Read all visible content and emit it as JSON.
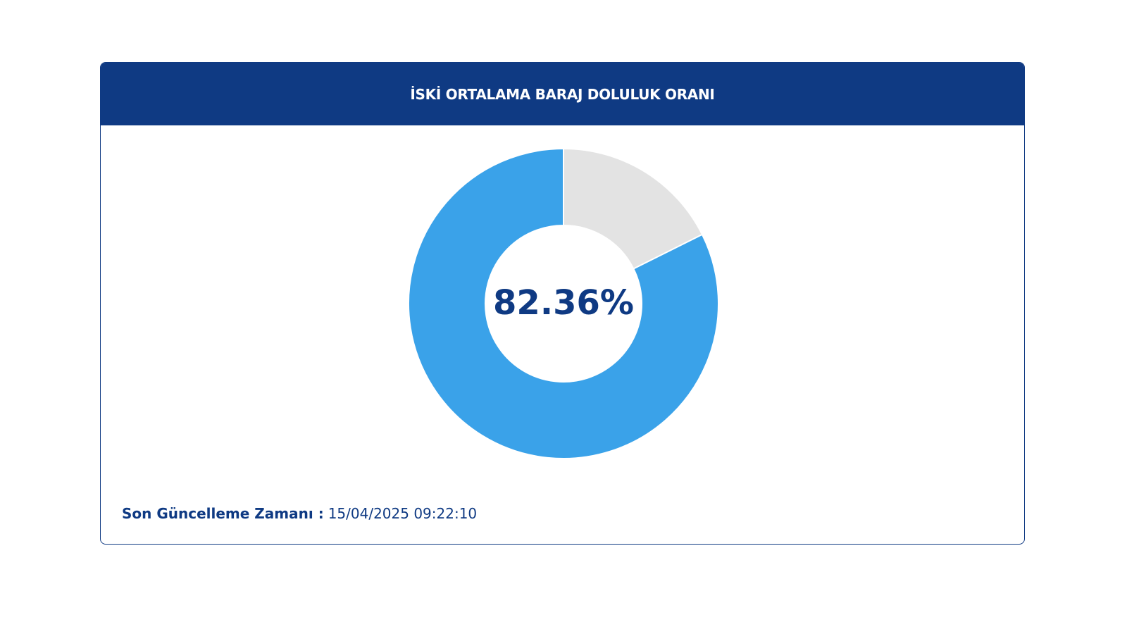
{
  "chart_data": {
    "type": "donut",
    "title": "İSKİ ORTALAMA BARAJ DOLULUK ORANI",
    "values": [
      82.36,
      17.64
    ],
    "value_labels": [
      "82.36%",
      null
    ],
    "colors": [
      "#3aa2e9",
      "#e3e3e3"
    ]
  },
  "footer": {
    "label": "Son Güncelleme Zamanı :",
    "timestamp": "15/04/2025 09:22:10"
  }
}
